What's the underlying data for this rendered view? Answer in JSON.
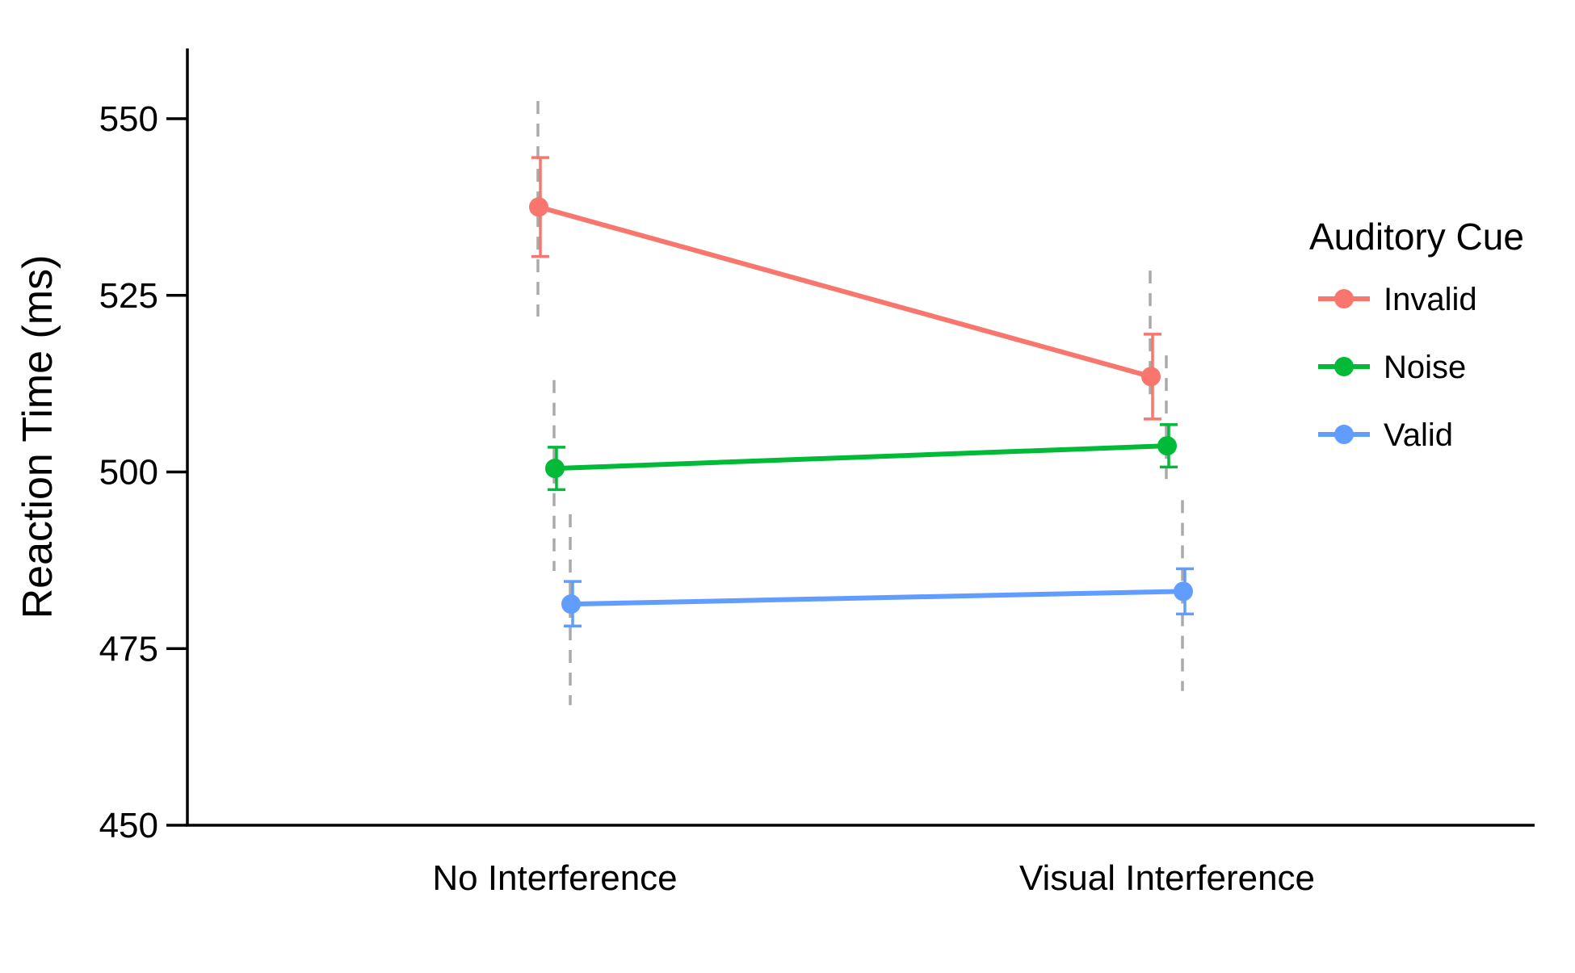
{
  "chart_data": {
    "type": "line",
    "title": "",
    "xlabel": "",
    "ylabel": "Reaction Time (ms)",
    "ylim": [
      450,
      560
    ],
    "yticks": [
      450,
      475,
      500,
      525,
      550
    ],
    "categories": [
      "No Interference",
      "Visual Interference"
    ],
    "grid": false,
    "legend": {
      "title": "Auditory Cue",
      "placement": "right"
    },
    "series": [
      {
        "name": "Invalid",
        "color": "#F8766D",
        "values": [
          537.5,
          513.5
        ],
        "error_bar": [
          [
            530.5,
            544.5
          ],
          [
            507.5,
            519.5
          ]
        ],
        "dashed_range": [
          [
            522,
            552.5
          ],
          [
            511,
            528.5
          ]
        ]
      },
      {
        "name": "Noise",
        "color": "#00BA38",
        "values": [
          500.5,
          503.7
        ],
        "error_bar": [
          [
            497.5,
            503.5
          ],
          [
            500.7,
            506.7
          ]
        ],
        "dashed_range": [
          [
            486,
            513
          ],
          [
            499,
            516.5
          ]
        ]
      },
      {
        "name": "Valid",
        "color": "#619CFF",
        "values": [
          481.3,
          483.1
        ],
        "error_bar": [
          [
            478.2,
            484.5
          ],
          [
            479.9,
            486.3
          ]
        ],
        "dashed_range": [
          [
            467,
            494
          ],
          [
            469,
            496
          ]
        ]
      }
    ],
    "dashed_line_color": "#AAAAAA"
  }
}
